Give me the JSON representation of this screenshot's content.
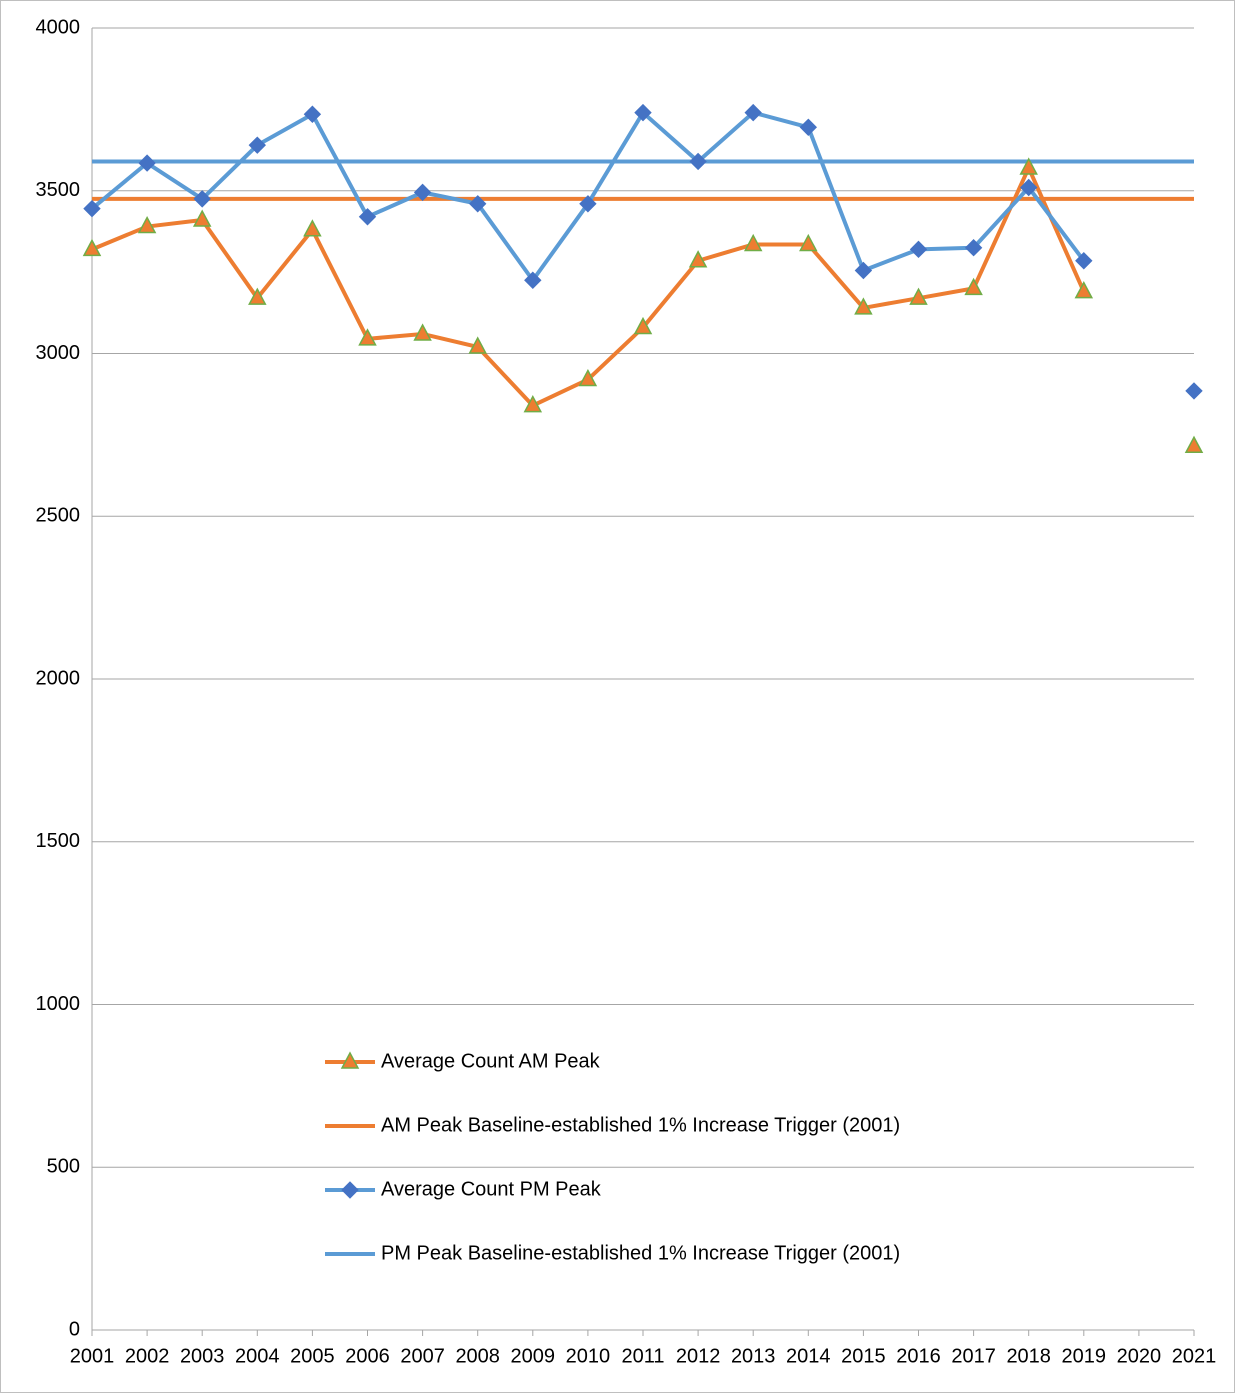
{
  "chart_data": {
    "type": "line",
    "categories": [
      "2001",
      "2002",
      "2003",
      "2004",
      "2005",
      "2006",
      "2007",
      "2008",
      "2009",
      "2010",
      "2011",
      "2012",
      "2013",
      "2014",
      "2015",
      "2016",
      "2017",
      "2018",
      "2019",
      "2020",
      "2021"
    ],
    "series": [
      {
        "name": "Average Count AM Peak",
        "color": "#ed7d31",
        "marker": "triangle",
        "marker_color": "#ed7d31",
        "marker_edge": "#70ad47",
        "values": [
          3320,
          3390,
          3410,
          3170,
          3380,
          3045,
          3060,
          3020,
          2840,
          2920,
          3080,
          3285,
          3335,
          3335,
          3140,
          3170,
          3200,
          3570,
          3190,
          null,
          2715
        ]
      },
      {
        "name": "AM Peak Baseline-established 1% Increase Trigger (2001)",
        "color": "#ed7d31",
        "marker": null,
        "values": [
          3475,
          3475,
          3475,
          3475,
          3475,
          3475,
          3475,
          3475,
          3475,
          3475,
          3475,
          3475,
          3475,
          3475,
          3475,
          3475,
          3475,
          3475,
          3475,
          3475,
          3475
        ]
      },
      {
        "name": "Average Count PM Peak",
        "color": "#5b9bd5",
        "marker": "diamond",
        "marker_color": "#4472c4",
        "marker_edge": "#4472c4",
        "values": [
          3445,
          3585,
          3475,
          3640,
          3735,
          3420,
          3495,
          3460,
          3225,
          3460,
          3740,
          3590,
          3740,
          3695,
          3255,
          3320,
          3325,
          3510,
          3285,
          null,
          2885
        ]
      },
      {
        "name": "PM Peak Baseline-established 1% Increase Trigger (2001)",
        "color": "#5b9bd5",
        "marker": null,
        "values": [
          3590,
          3590,
          3590,
          3590,
          3590,
          3590,
          3590,
          3590,
          3590,
          3590,
          3590,
          3590,
          3590,
          3590,
          3590,
          3590,
          3590,
          3590,
          3590,
          3590,
          3590
        ]
      }
    ],
    "ylim": [
      0,
      4000
    ],
    "yticks": [
      0,
      500,
      1000,
      1500,
      2000,
      2500,
      3000,
      3500,
      4000
    ],
    "grid": true,
    "legend": "lower center"
  }
}
